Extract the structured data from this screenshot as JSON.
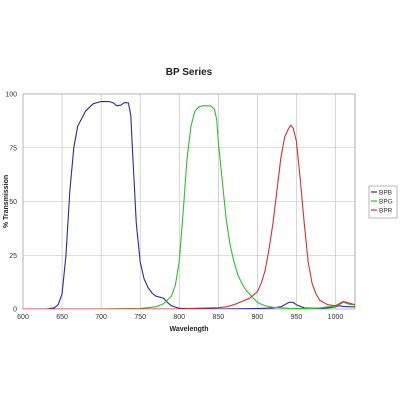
{
  "chart_data": {
    "type": "line",
    "title": "BP Series",
    "xlabel": "Wavelength",
    "ylabel": "% Transmission",
    "xlim": [
      600,
      1025
    ],
    "ylim": [
      0,
      100
    ],
    "xticks": [
      600,
      650,
      700,
      750,
      800,
      850,
      900,
      950,
      1000
    ],
    "yticks": [
      0,
      25,
      50,
      75,
      100
    ],
    "grid": true,
    "legend_position": "right",
    "series": [
      {
        "name": "BPB",
        "color": "#2b2b8f",
        "points": [
          [
            600,
            0
          ],
          [
            630,
            0
          ],
          [
            640,
            0.5
          ],
          [
            645,
            2
          ],
          [
            650,
            7
          ],
          [
            655,
            25
          ],
          [
            660,
            55
          ],
          [
            665,
            75
          ],
          [
            670,
            85
          ],
          [
            680,
            92
          ],
          [
            690,
            95.5
          ],
          [
            700,
            96.5
          ],
          [
            710,
            96.5
          ],
          [
            715,
            96
          ],
          [
            720,
            94.5
          ],
          [
            725,
            94.8
          ],
          [
            730,
            96
          ],
          [
            735,
            95.8
          ],
          [
            738,
            90
          ],
          [
            740,
            75
          ],
          [
            745,
            40
          ],
          [
            750,
            22
          ],
          [
            755,
            14
          ],
          [
            760,
            10
          ],
          [
            765,
            7.5
          ],
          [
            770,
            6
          ],
          [
            775,
            5.5
          ],
          [
            780,
            5
          ],
          [
            785,
            3
          ],
          [
            790,
            1.5
          ],
          [
            800,
            0.3
          ],
          [
            850,
            0
          ],
          [
            900,
            0.2
          ],
          [
            920,
            0.5
          ],
          [
            930,
            1
          ],
          [
            940,
            3
          ],
          [
            945,
            3.2
          ],
          [
            950,
            2
          ],
          [
            960,
            0.5
          ],
          [
            980,
            0.3
          ],
          [
            990,
            0.5
          ],
          [
            1000,
            1
          ],
          [
            1005,
            1.5
          ],
          [
            1010,
            1.2
          ],
          [
            1020,
            1
          ],
          [
            1025,
            1
          ]
        ]
      },
      {
        "name": "BPG",
        "color": "#33bb33",
        "points": [
          [
            600,
            0
          ],
          [
            700,
            0
          ],
          [
            750,
            0.2
          ],
          [
            770,
            1
          ],
          [
            780,
            2.5
          ],
          [
            790,
            6
          ],
          [
            795,
            11
          ],
          [
            800,
            22
          ],
          [
            805,
            45
          ],
          [
            810,
            70
          ],
          [
            815,
            85
          ],
          [
            820,
            92
          ],
          [
            825,
            94
          ],
          [
            830,
            94.5
          ],
          [
            840,
            94.5
          ],
          [
            845,
            93
          ],
          [
            848,
            88
          ],
          [
            850,
            78
          ],
          [
            855,
            60
          ],
          [
            860,
            42
          ],
          [
            865,
            30
          ],
          [
            870,
            22
          ],
          [
            875,
            16
          ],
          [
            880,
            12
          ],
          [
            885,
            9
          ],
          [
            890,
            7
          ],
          [
            900,
            3
          ],
          [
            910,
            1.5
          ],
          [
            920,
            0.8
          ],
          [
            940,
            0.3
          ],
          [
            960,
            0.2
          ],
          [
            980,
            0.5
          ],
          [
            990,
            1
          ],
          [
            1000,
            1.2
          ],
          [
            1005,
            2
          ],
          [
            1010,
            3.2
          ],
          [
            1015,
            2.5
          ],
          [
            1020,
            2
          ],
          [
            1025,
            2
          ]
        ]
      },
      {
        "name": "BPR",
        "color": "#cc3333",
        "points": [
          [
            600,
            0
          ],
          [
            800,
            0
          ],
          [
            820,
            0.3
          ],
          [
            840,
            0.5
          ],
          [
            850,
            0.6
          ],
          [
            860,
            1
          ],
          [
            870,
            2
          ],
          [
            880,
            3.5
          ],
          [
            890,
            5
          ],
          [
            900,
            8
          ],
          [
            905,
            12
          ],
          [
            910,
            18
          ],
          [
            915,
            28
          ],
          [
            920,
            40
          ],
          [
            925,
            55
          ],
          [
            930,
            70
          ],
          [
            935,
            80
          ],
          [
            940,
            84
          ],
          [
            943,
            85.5
          ],
          [
            946,
            84
          ],
          [
            950,
            78
          ],
          [
            955,
            60
          ],
          [
            960,
            40
          ],
          [
            965,
            22
          ],
          [
            970,
            12
          ],
          [
            975,
            7
          ],
          [
            980,
            4
          ],
          [
            990,
            2
          ],
          [
            1000,
            1.5
          ],
          [
            1010,
            3.5
          ],
          [
            1015,
            3
          ],
          [
            1020,
            2.5
          ],
          [
            1025,
            2
          ]
        ]
      }
    ]
  }
}
